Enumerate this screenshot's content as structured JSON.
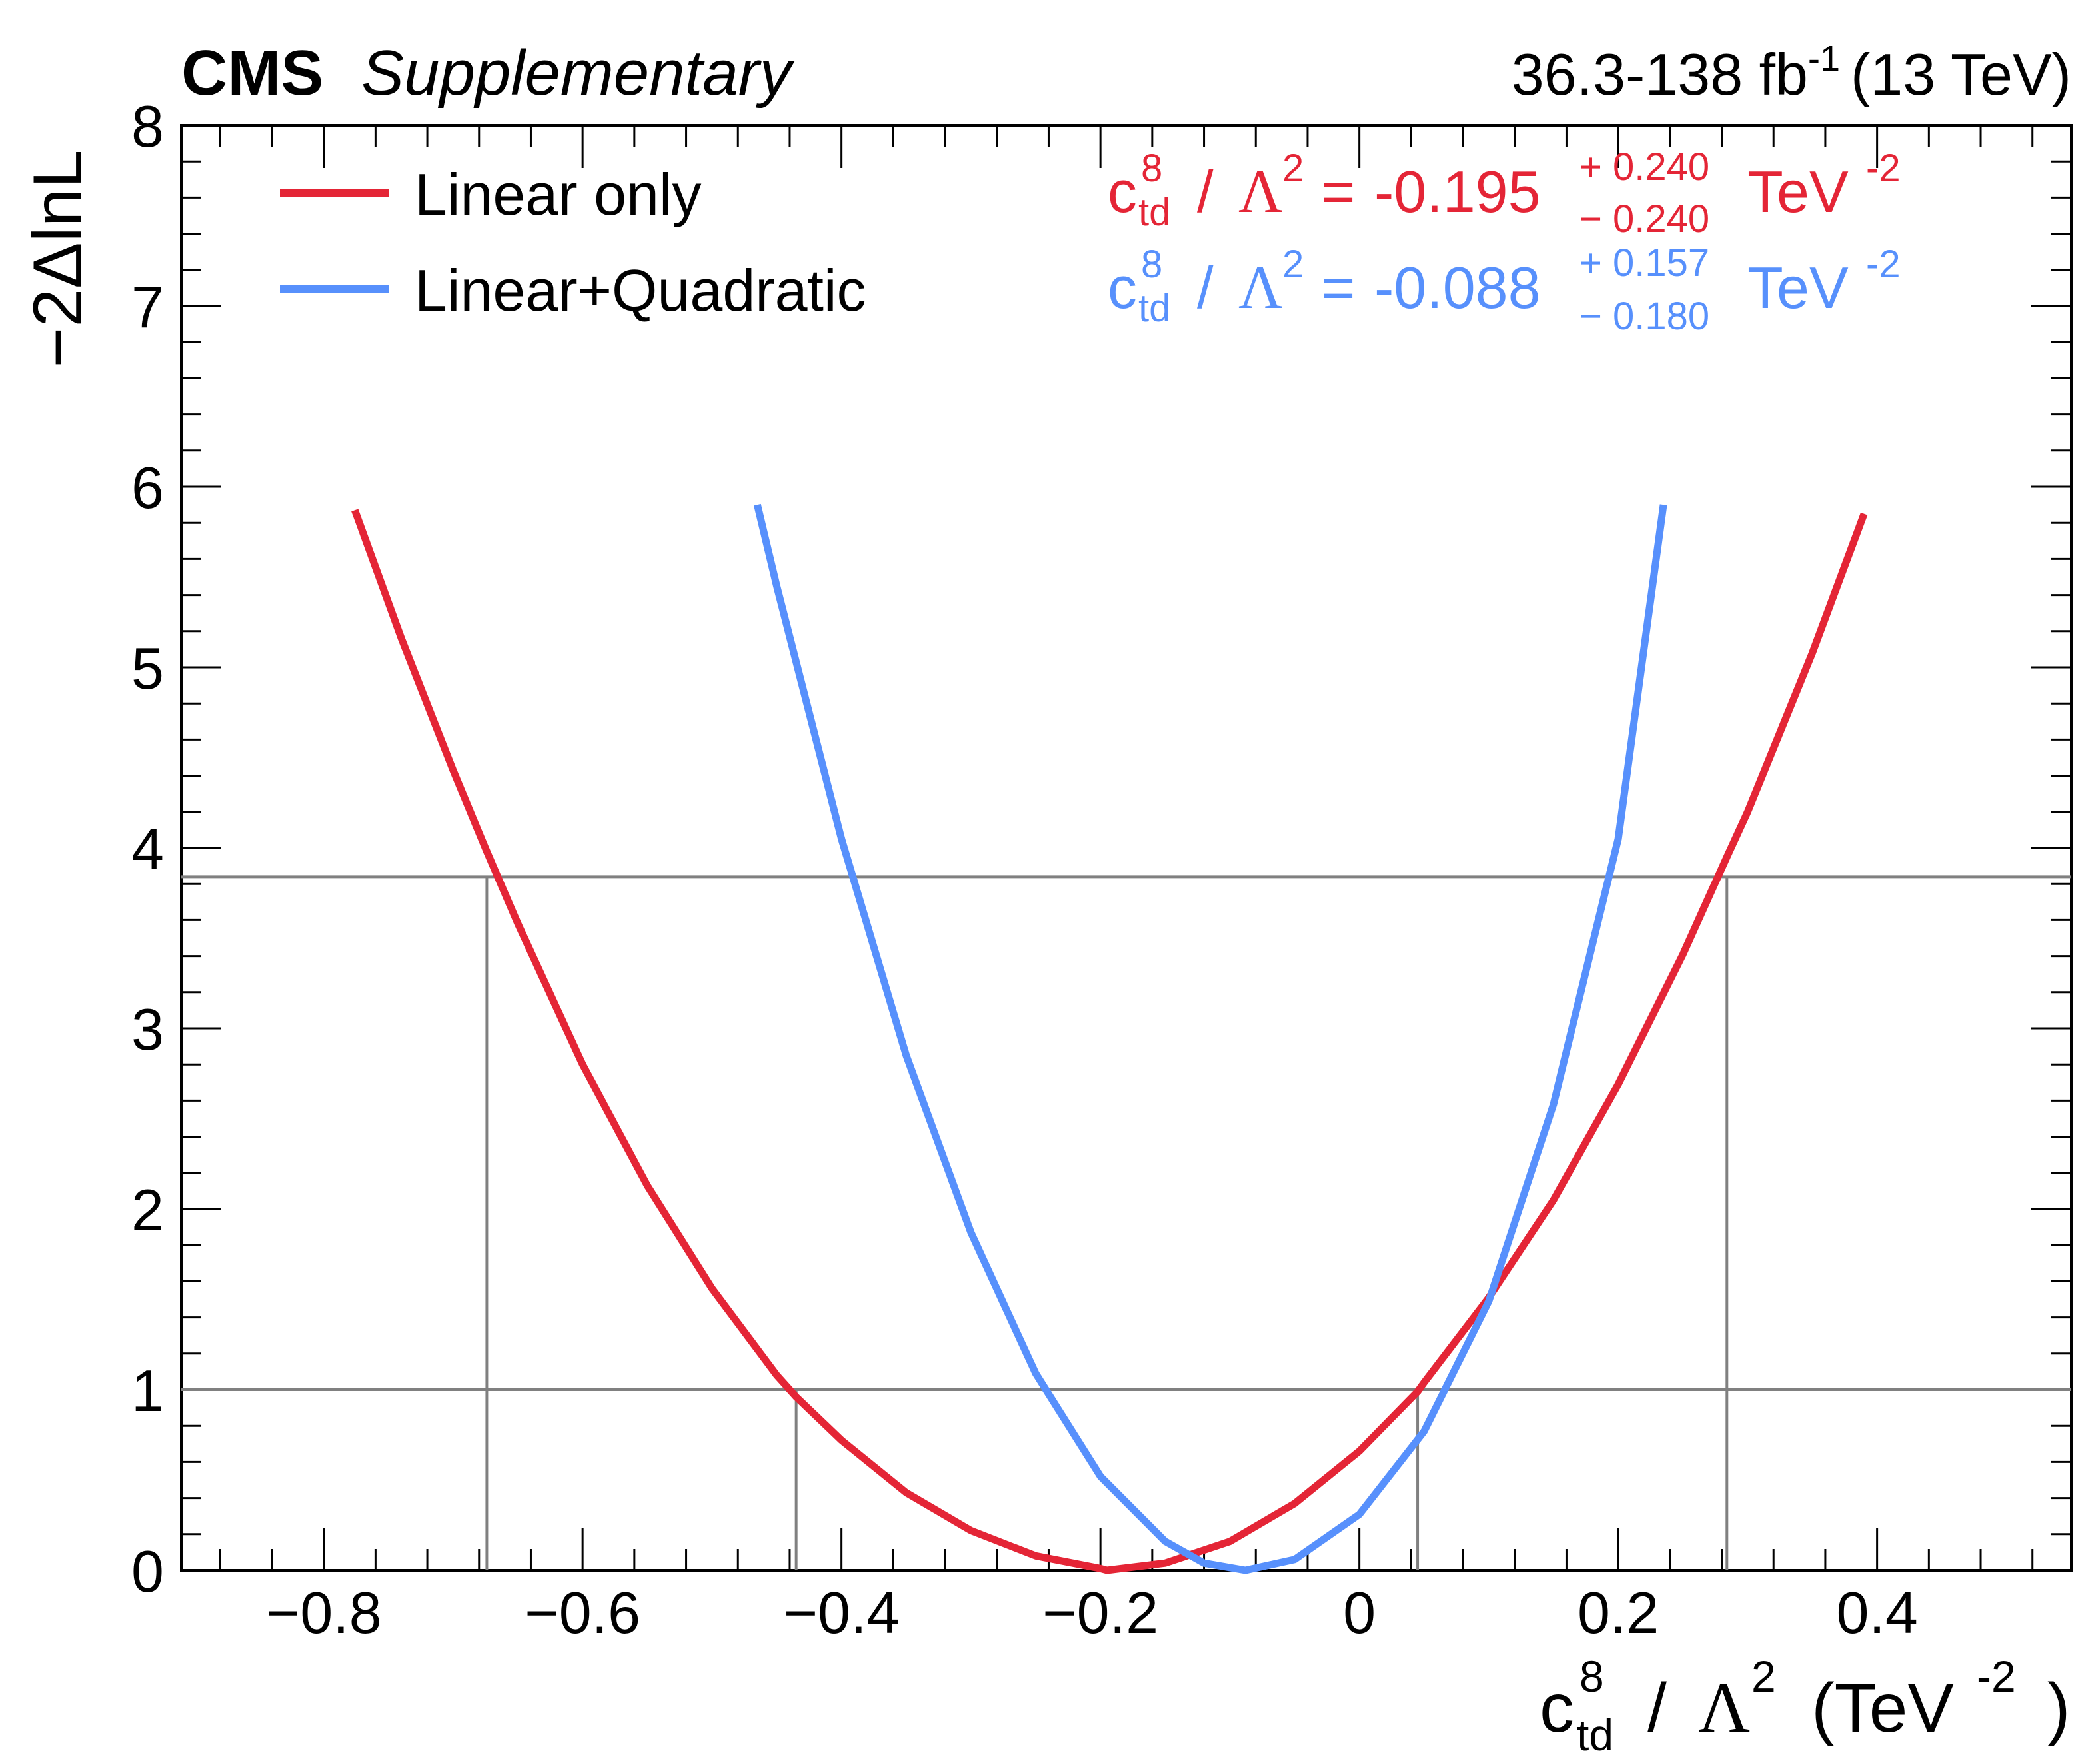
{
  "chart_data": {
    "type": "line",
    "header": {
      "experiment": "CMS",
      "label": "Supplementary",
      "lumi_range": "36.3-138 fb",
      "lumi_exp": "-1",
      "energy": "(13 TeV)"
    },
    "ylabel": "−2ΔlnL",
    "xlabel": {
      "c": "c",
      "sup": "8",
      "sub": "td",
      "slash": "/",
      "lambda": "Λ",
      "lambda_sup": "2",
      "unit_open": "(TeV",
      "unit_exp": "-2",
      "unit_close": ")"
    },
    "xlim": [
      -0.91,
      0.55
    ],
    "ylim": [
      0,
      8
    ],
    "x_ticks": [
      {
        "value": -0.8,
        "label": "−0.8"
      },
      {
        "value": -0.6,
        "label": "−0.6"
      },
      {
        "value": -0.4,
        "label": "−0.4"
      },
      {
        "value": -0.2,
        "label": "−0.2"
      },
      {
        "value": 0,
        "label": "0"
      },
      {
        "value": 0.2,
        "label": "0.2"
      },
      {
        "value": 0.4,
        "label": "0.4"
      }
    ],
    "y_ticks": [
      {
        "value": 0,
        "label": "0"
      },
      {
        "value": 1,
        "label": "1"
      },
      {
        "value": 2,
        "label": "2"
      },
      {
        "value": 3,
        "label": "3"
      },
      {
        "value": 4,
        "label": "4"
      },
      {
        "value": 5,
        "label": "5"
      },
      {
        "value": 6,
        "label": "6"
      },
      {
        "value": 7,
        "label": "7"
      },
      {
        "value": 8,
        "label": "8"
      }
    ],
    "reference_lines": {
      "horizontal": [
        1.0,
        3.84
      ],
      "vertical": [
        {
          "x": -0.674,
          "y": 3.84
        },
        {
          "x": -0.435,
          "y": 1.0
        },
        {
          "x": 0.045,
          "y": 1.0
        },
        {
          "x": 0.284,
          "y": 3.84
        }
      ]
    },
    "series": [
      {
        "name": "Linear only",
        "color": "#e42536",
        "x": [
          -0.776,
          -0.74,
          -0.7,
          -0.674,
          -0.65,
          -0.6,
          -0.55,
          -0.5,
          -0.45,
          -0.435,
          -0.4,
          -0.35,
          -0.3,
          -0.25,
          -0.2,
          -0.195,
          -0.15,
          -0.1,
          -0.05,
          0,
          0.045,
          0.05,
          0.1,
          0.15,
          0.2,
          0.25,
          0.284,
          0.3,
          0.35,
          0.39
        ],
        "y": [
          5.87,
          5.16,
          4.43,
          3.98,
          3.58,
          2.8,
          2.13,
          1.56,
          1.08,
          0.96,
          0.72,
          0.43,
          0.22,
          0.08,
          0.01,
          0.0,
          0.04,
          0.16,
          0.37,
          0.66,
          0.99,
          1.04,
          1.51,
          2.05,
          2.69,
          3.41,
          3.95,
          4.2,
          5.08,
          5.85
        ],
        "best_fit": {
          "c": "c",
          "sup": "8",
          "sub": "td",
          "slash": "/",
          "lambda": "Λ",
          "lambda_sup": "2",
          "eq": "=",
          "value": "-0.195",
          "err_up": "+ 0.240",
          "err_down": "− 0.240",
          "unit": "TeV",
          "unit_exp": "-2"
        }
      },
      {
        "name": "Linear+Quadratic",
        "color": "#5790fc",
        "x": [
          -0.465,
          -0.45,
          -0.4,
          -0.35,
          -0.3,
          -0.25,
          -0.2,
          -0.15,
          -0.12,
          -0.088,
          -0.05,
          0,
          0.05,
          0.1,
          0.15,
          0.2,
          0.235
        ],
        "y": [
          5.9,
          5.45,
          4.05,
          2.85,
          1.87,
          1.09,
          0.52,
          0.16,
          0.04,
          0.0,
          0.06,
          0.31,
          0.77,
          1.49,
          2.58,
          4.05,
          5.9
        ],
        "best_fit": {
          "c": "c",
          "sup": "8",
          "sub": "td",
          "slash": "/",
          "lambda": "Λ",
          "lambda_sup": "2",
          "eq": "=",
          "value": "-0.088",
          "err_up": "+ 0.157",
          "err_down": "− 0.180",
          "unit": "TeV",
          "unit_exp": "-2"
        }
      }
    ],
    "legend_position": "top-left",
    "grid": false
  }
}
